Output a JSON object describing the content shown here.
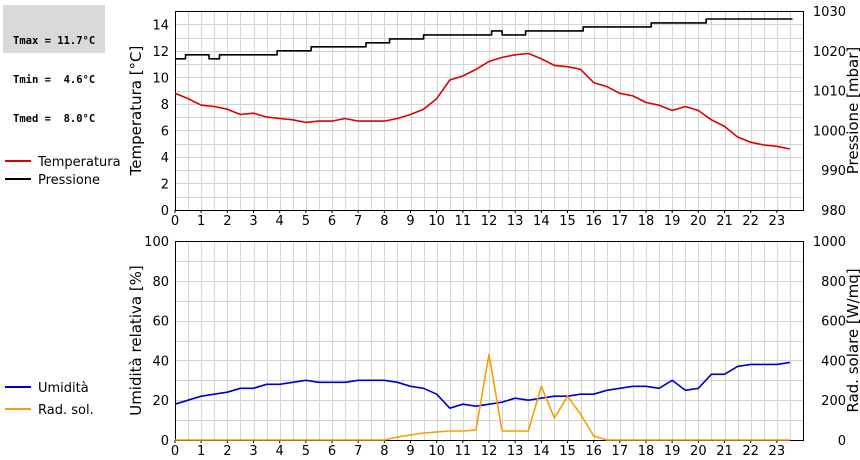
{
  "stats": {
    "tmax": "Tmax = 11.7°C",
    "tmin": "Tmin =  4.6°C",
    "tmed": "Tmed =  8.0°C"
  },
  "colors": {
    "temperature": "#dd0000",
    "pressure": "#000000",
    "humidity": "#0000cc",
    "solar": "#f5a000",
    "grid": "#d4d4d4"
  },
  "chart_data": [
    {
      "type": "line",
      "x_ticks": [
        "0",
        "1",
        "2",
        "3",
        "4",
        "5",
        "6",
        "7",
        "8",
        "9",
        "10",
        "11",
        "12",
        "13",
        "14",
        "15",
        "16",
        "17",
        "18",
        "19",
        "20",
        "21",
        "22",
        "23"
      ],
      "xlim": [
        0,
        24
      ],
      "ylabel": "Temperatura [°C]",
      "ylim": [
        0,
        15
      ],
      "y_ticks": [
        0,
        2,
        4,
        6,
        8,
        10,
        12,
        14
      ],
      "ylabel_right": "Pressione [mbar]",
      "ylim_right": [
        980,
        1030
      ],
      "y_ticks_right": [
        980,
        990,
        1000,
        1010,
        1020,
        1030
      ],
      "grid": true,
      "legend_position": "left",
      "series": [
        {
          "name": "Temperatura",
          "axis": "left",
          "color": "#dd0000",
          "x": [
            0,
            0.5,
            1,
            1.5,
            2,
            2.5,
            3,
            3.5,
            4,
            4.5,
            5,
            5.5,
            6,
            6.5,
            7,
            7.5,
            8,
            8.5,
            9,
            9.5,
            10,
            10.5,
            11,
            11.5,
            12,
            12.5,
            13,
            13.5,
            14,
            14.5,
            15,
            15.5,
            16,
            16.5,
            17,
            17.5,
            18,
            18.5,
            19,
            19.5,
            20,
            20.5,
            21,
            21.5,
            22,
            22.5,
            23,
            23.5
          ],
          "values": [
            8.8,
            8.4,
            7.9,
            7.8,
            7.6,
            7.2,
            7.3,
            7.0,
            6.9,
            6.8,
            6.6,
            6.7,
            6.7,
            6.9,
            6.7,
            6.7,
            6.7,
            6.9,
            7.2,
            7.6,
            8.4,
            9.8,
            10.1,
            10.6,
            11.2,
            11.5,
            11.7,
            11.8,
            11.4,
            10.9,
            10.8,
            10.6,
            9.6,
            9.3,
            8.8,
            8.6,
            8.1,
            7.9,
            7.5,
            7.8,
            7.5,
            6.8,
            6.3,
            5.5,
            5.1,
            4.9,
            4.8,
            4.6
          ]
        },
        {
          "name": "Pressione",
          "axis": "right",
          "color": "#000000",
          "step": true,
          "x": [
            0,
            0.4,
            0.8,
            1.3,
            1.7,
            2.1,
            2.6,
            3.0,
            3.4,
            3.9,
            4.3,
            4.7,
            5.2,
            5.6,
            6.0,
            6.5,
            6.9,
            7.3,
            7.8,
            8.2,
            8.6,
            9.1,
            9.5,
            9.9,
            10.4,
            10.8,
            11.2,
            11.7,
            12.1,
            12.5,
            13.0,
            13.4,
            13.8,
            14.3,
            14.7,
            15.1,
            15.6,
            16.0,
            16.4,
            16.9,
            17.3,
            17.7,
            18.2,
            18.6,
            19.0,
            19.5,
            19.9,
            20.3,
            20.8,
            21.2,
            21.6,
            22.1,
            22.5,
            22.9,
            23.4
          ],
          "values": [
            1018,
            1019,
            1019,
            1018,
            1019,
            1019,
            1019,
            1019,
            1019,
            1020,
            1020,
            1020,
            1021,
            1021,
            1021,
            1021,
            1021,
            1022,
            1022,
            1023,
            1023,
            1023,
            1024,
            1024,
            1024,
            1024,
            1024,
            1024,
            1025,
            1024,
            1024,
            1025,
            1025,
            1025,
            1025,
            1025,
            1026,
            1026,
            1026,
            1026,
            1026,
            1026,
            1027,
            1027,
            1027,
            1027,
            1027,
            1028,
            1028,
            1028,
            1028,
            1028,
            1028,
            1028,
            1028
          ]
        }
      ]
    },
    {
      "type": "line",
      "x_ticks": [
        "0",
        "1",
        "2",
        "3",
        "4",
        "5",
        "6",
        "7",
        "8",
        "9",
        "10",
        "11",
        "12",
        "13",
        "14",
        "15",
        "16",
        "17",
        "18",
        "19",
        "20",
        "21",
        "22",
        "23"
      ],
      "xlim": [
        0,
        24
      ],
      "ylabel": "Umidità relativa [%]",
      "ylim": [
        0,
        100
      ],
      "y_ticks": [
        0,
        20,
        40,
        60,
        80,
        100
      ],
      "ylabel_right": "Rad. solare [W/mq]",
      "ylim_right": [
        0,
        1000
      ],
      "y_ticks_right": [
        0,
        200,
        400,
        600,
        800,
        1000
      ],
      "grid": true,
      "legend_position": "left",
      "series": [
        {
          "name": "Umidità",
          "axis": "left",
          "color": "#0000cc",
          "x": [
            0,
            0.5,
            1,
            1.5,
            2,
            2.5,
            3,
            3.5,
            4,
            4.5,
            5,
            5.5,
            6,
            6.5,
            7,
            7.5,
            8,
            8.5,
            9,
            9.5,
            10,
            10.5,
            11,
            11.5,
            12,
            12.5,
            13,
            13.5,
            14,
            14.5,
            15,
            15.5,
            16,
            16.5,
            17,
            17.5,
            18,
            18.5,
            19,
            19.5,
            20,
            20.5,
            21,
            21.5,
            22,
            22.5,
            23,
            23.5
          ],
          "values": [
            18,
            20,
            22,
            23,
            24,
            26,
            26,
            28,
            28,
            29,
            30,
            29,
            29,
            29,
            30,
            30,
            30,
            29,
            27,
            26,
            23,
            16,
            18,
            17,
            18,
            19,
            21,
            20,
            21,
            22,
            22,
            23,
            23,
            25,
            26,
            27,
            27,
            26,
            30,
            25,
            26,
            33,
            33,
            37,
            38,
            38,
            38,
            39
          ]
        },
        {
          "name": "Rad. sol.",
          "axis": "right",
          "color": "#f5a000",
          "x": [
            0,
            0.5,
            1,
            1.5,
            2,
            2.5,
            3,
            3.5,
            4,
            4.5,
            5,
            5.5,
            6,
            6.5,
            7,
            7.5,
            8,
            8.5,
            9,
            9.5,
            10,
            10.5,
            11,
            11.5,
            12,
            12.5,
            13,
            13.5,
            14,
            14.5,
            15,
            15.5,
            16,
            16.5,
            17,
            17.5,
            18,
            18.5,
            19,
            19.5,
            20,
            20.5,
            21,
            21.5,
            22,
            22.5,
            23,
            23.5
          ],
          "values": [
            0,
            0,
            0,
            0,
            0,
            0,
            0,
            0,
            0,
            0,
            0,
            0,
            0,
            0,
            0,
            0,
            0,
            15,
            25,
            35,
            40,
            45,
            45,
            50,
            430,
            45,
            45,
            45,
            270,
            110,
            220,
            130,
            20,
            0,
            0,
            0,
            0,
            0,
            0,
            0,
            0,
            0,
            0,
            0,
            0,
            0,
            0,
            0
          ]
        }
      ]
    }
  ]
}
